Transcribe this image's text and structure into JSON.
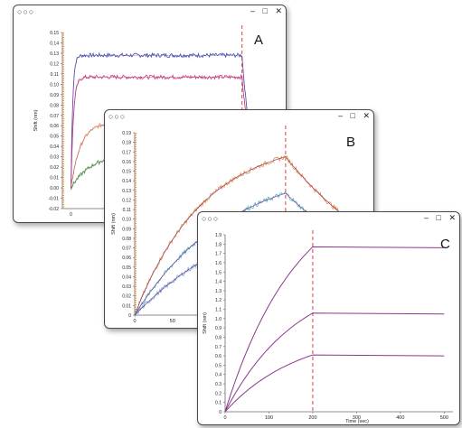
{
  "windows": [
    {
      "id": "A",
      "dots": "○○○",
      "min": "–",
      "max": "□",
      "close": "✕",
      "letter": "A"
    },
    {
      "id": "B",
      "dots": "○○○",
      "min": "–",
      "max": "□",
      "close": "✕",
      "letter": "B"
    },
    {
      "id": "C",
      "dots": "○○○",
      "min": "–",
      "max": "□",
      "close": "✕",
      "letter": "C"
    }
  ],
  "chart_data": [
    {
      "panel": "A",
      "type": "line",
      "title": "",
      "xlabel": "",
      "ylabel": "Shift (nm)",
      "ylim": [
        -0.02,
        0.15
      ],
      "yticks": [
        "-0.02",
        "-0.01",
        "0.00",
        "0.01",
        "0.02",
        "0.03",
        "0.04",
        "0.05",
        "0.06",
        "0.07",
        "0.08",
        "0.09",
        "0.10",
        "0.11",
        "0.12",
        "0.13",
        "0.14",
        "0.15"
      ],
      "xlim": [
        -10,
        250
      ],
      "xticks": [
        "0"
      ],
      "dissociation_start": 200,
      "series_color": [
        "#3b4fb0",
        "#d4357a",
        "#f08a3a",
        "#3a9a3a"
      ],
      "series": [
        {
          "plateau": 0.128,
          "k": 0.5
        },
        {
          "plateau": 0.107,
          "k": 0.35
        },
        {
          "plateau": 0.063,
          "k": 0.09
        },
        {
          "plateau": 0.034,
          "k": 0.04
        }
      ]
    },
    {
      "panel": "B",
      "type": "line",
      "title": "",
      "xlabel": "",
      "ylabel": "Shift (nm)",
      "ylim": [
        0,
        0.19
      ],
      "yticks": [
        "0",
        "0.01",
        "0.02",
        "0.03",
        "0.04",
        "0.05",
        "0.06",
        "0.07",
        "0.08",
        "0.09",
        "0.10",
        "0.11",
        "0.12",
        "0.13",
        "0.14",
        "0.15",
        "0.16",
        "0.17",
        "0.18",
        "0.19"
      ],
      "xlim": [
        0,
        320
      ],
      "xticks": [
        "0",
        "50",
        "1"
      ],
      "dissociation_start": 200,
      "series_color": [
        "#e8903c",
        "#4fb3c9",
        "#6aa0d8"
      ],
      "fit_color": "#7a2a7a",
      "series": [
        {
          "peak": 0.165,
          "k": 0.011
        },
        {
          "peak": 0.127,
          "k": 0.008
        },
        {
          "peak": 0.095,
          "k": 0.006
        }
      ]
    },
    {
      "panel": "C",
      "type": "line",
      "title": "",
      "xlabel": "Time (sec)",
      "ylabel": "Shift (nm)",
      "ylim": [
        0,
        1.9
      ],
      "yticks": [
        "0",
        "0.1",
        "0.2",
        "0.3",
        "0.4",
        "0.5",
        "0.6",
        "0.7",
        "0.8",
        "0.9",
        "1.0",
        "1.1",
        "1.2",
        "1.3",
        "1.4",
        "1.5",
        "1.6",
        "1.7",
        "1.8",
        "1.9"
      ],
      "xlim": [
        0,
        520
      ],
      "xticks": [
        "0",
        "100",
        "200",
        "300",
        "400",
        "500"
      ],
      "dissociation_start": 200,
      "line_color": "#8a3a8a",
      "series": [
        {
          "x": [
            0,
            200,
            500
          ],
          "plateau": 1.77
        },
        {
          "x": [
            0,
            200,
            500
          ],
          "plateau": 1.06
        },
        {
          "x": [
            0,
            200,
            500
          ],
          "plateau": 0.61
        }
      ]
    }
  ]
}
